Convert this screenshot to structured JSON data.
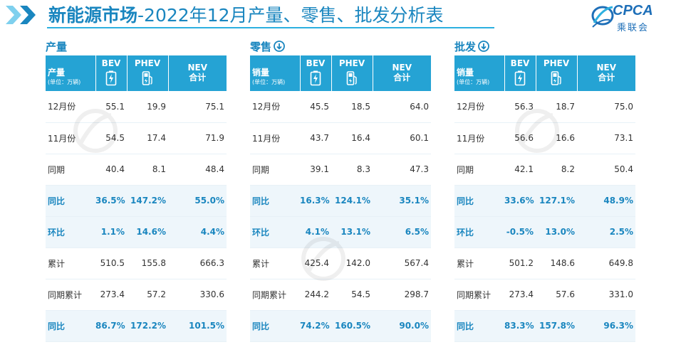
{
  "header": {
    "title_bold": "新能源市场",
    "title_rest": "-2022年12月产量、零售、批发分析表",
    "logo_text": "CPCA",
    "logo_cn": "乘联会",
    "accent": "#1a86bf",
    "header_bg": "#25a3d4"
  },
  "columns": {
    "bev": "BEV",
    "phev": "PHEV",
    "nev_line1": "NEV",
    "nev_line2": "合计"
  },
  "sections": [
    {
      "title": "产量",
      "header_label": "产量",
      "unit": "(单位：万辆)",
      "rows": [
        {
          "label": "12月份",
          "bev": "55.1",
          "phev": "19.9",
          "nev": "75.1"
        },
        {
          "label": "11月份",
          "bev": "54.5",
          "phev": "17.4",
          "nev": "71.9"
        },
        {
          "label": "同期",
          "bev": "40.4",
          "phev": "8.1",
          "nev": "48.4"
        },
        {
          "label": "同比",
          "bev": "36.5%",
          "phev": "147.2%",
          "nev": "55.0%"
        },
        {
          "label": "环比",
          "bev": "1.1%",
          "phev": "14.6%",
          "nev": "4.4%"
        },
        {
          "label": "累计",
          "bev": "510.5",
          "phev": "155.8",
          "nev": "666.3"
        },
        {
          "label": "同期累计",
          "bev": "273.4",
          "phev": "57.2",
          "nev": "330.6"
        },
        {
          "label": "同比",
          "bev": "86.7%",
          "phev": "172.2%",
          "nev": "101.5%"
        }
      ]
    },
    {
      "title": "零售",
      "header_label": "销量",
      "unit": "(单位：万辆)",
      "rows": [
        {
          "label": "12月份",
          "bev": "45.5",
          "phev": "18.5",
          "nev": "64.0"
        },
        {
          "label": "11月份",
          "bev": "43.7",
          "phev": "16.4",
          "nev": "60.1"
        },
        {
          "label": "同期",
          "bev": "39.1",
          "phev": "8.3",
          "nev": "47.3"
        },
        {
          "label": "同比",
          "bev": "16.3%",
          "phev": "124.1%",
          "nev": "35.1%"
        },
        {
          "label": "环比",
          "bev": "4.1%",
          "phev": "13.1%",
          "nev": "6.5%"
        },
        {
          "label": "累计",
          "bev": "425.4",
          "phev": "142.0",
          "nev": "567.4"
        },
        {
          "label": "同期累计",
          "bev": "244.2",
          "phev": "54.5",
          "nev": "298.7"
        },
        {
          "label": "同比",
          "bev": "74.2%",
          "phev": "160.5%",
          "nev": "90.0%"
        }
      ]
    },
    {
      "title": "批发",
      "header_label": "销量",
      "unit": "(单位：万辆)",
      "rows": [
        {
          "label": "12月份",
          "bev": "56.3",
          "phev": "18.7",
          "nev": "75.0"
        },
        {
          "label": "11月份",
          "bev": "56.6",
          "phev": "16.6",
          "nev": "73.1"
        },
        {
          "label": "同期",
          "bev": "42.1",
          "phev": "8.2",
          "nev": "50.4"
        },
        {
          "label": "同比",
          "bev": "33.6%",
          "phev": "127.1%",
          "nev": "48.9%"
        },
        {
          "label": "环比",
          "bev": "-0.5%",
          "phev": "13.0%",
          "nev": "2.5%"
        },
        {
          "label": "累计",
          "bev": "501.2",
          "phev": "148.6",
          "nev": "649.8"
        },
        {
          "label": "同期累计",
          "bev": "273.4",
          "phev": "57.6",
          "nev": "331.0"
        },
        {
          "label": "同比",
          "bev": "83.3%",
          "phev": "157.8%",
          "nev": "96.3%"
        }
      ]
    }
  ]
}
